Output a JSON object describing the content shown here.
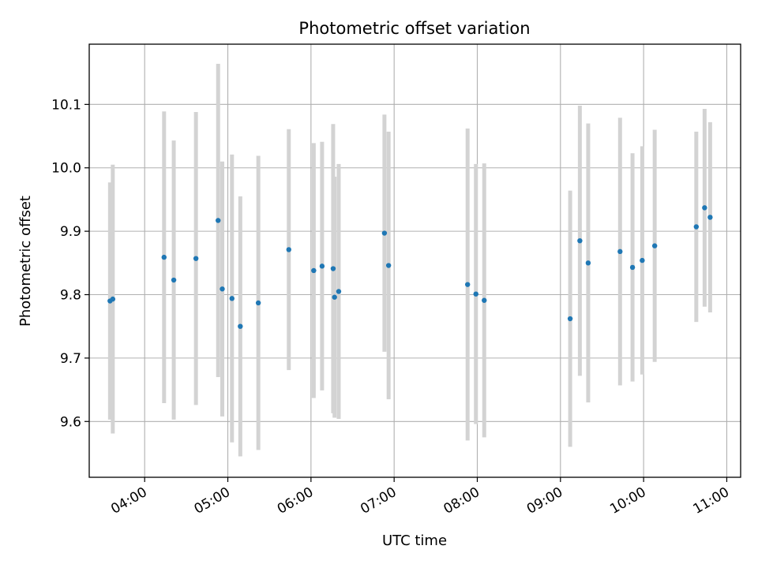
{
  "chart_data": {
    "type": "scatter",
    "title": "Photometric offset variation",
    "xlabel": "UTC time",
    "ylabel": "Photometric offset",
    "x_is_time": true,
    "xlim": [
      "03:20",
      "11:10"
    ],
    "ylim": [
      9.512,
      10.195
    ],
    "xticks": [
      "04:00",
      "05:00",
      "06:00",
      "07:00",
      "08:00",
      "09:00",
      "10:00",
      "11:00"
    ],
    "yticks": [
      "9.6",
      "9.7",
      "9.8",
      "9.9",
      "10.0",
      "10.1"
    ],
    "grid": true,
    "legend": "none",
    "colors": {
      "point": "#1f77b4",
      "errorbar": "#d3d3d3",
      "grid": "#b0b0b0"
    },
    "points": [
      {
        "x": "03:35",
        "y": 9.79,
        "err": 0.187
      },
      {
        "x": "03:37",
        "y": 9.793,
        "err": 0.212
      },
      {
        "x": "04:14",
        "y": 9.859,
        "err": 0.23
      },
      {
        "x": "04:21",
        "y": 9.823,
        "err": 0.22
      },
      {
        "x": "04:37",
        "y": 9.857,
        "err": 0.231
      },
      {
        "x": "04:53",
        "y": 9.917,
        "err": 0.247
      },
      {
        "x": "04:56",
        "y": 9.809,
        "err": 0.201
      },
      {
        "x": "05:03",
        "y": 9.794,
        "err": 0.227
      },
      {
        "x": "05:09",
        "y": 9.75,
        "err": 0.205
      },
      {
        "x": "05:22",
        "y": 9.787,
        "err": 0.232
      },
      {
        "x": "05:44",
        "y": 9.871,
        "err": 0.19
      },
      {
        "x": "06:02",
        "y": 9.838,
        "err": 0.201
      },
      {
        "x": "06:08",
        "y": 9.845,
        "err": 0.196
      },
      {
        "x": "06:16",
        "y": 9.841,
        "err": 0.228
      },
      {
        "x": "06:17",
        "y": 9.796,
        "err": 0.19
      },
      {
        "x": "06:20",
        "y": 9.805,
        "err": 0.201
      },
      {
        "x": "06:53",
        "y": 9.897,
        "err": 0.187
      },
      {
        "x": "06:56",
        "y": 9.846,
        "err": 0.211
      },
      {
        "x": "07:53",
        "y": 9.816,
        "err": 0.246
      },
      {
        "x": "07:59",
        "y": 9.801,
        "err": 0.205
      },
      {
        "x": "08:05",
        "y": 9.791,
        "err": 0.216
      },
      {
        "x": "09:07",
        "y": 9.762,
        "err": 0.202
      },
      {
        "x": "09:14",
        "y": 9.885,
        "err": 0.213
      },
      {
        "x": "09:20",
        "y": 9.85,
        "err": 0.22
      },
      {
        "x": "09:43",
        "y": 9.868,
        "err": 0.211
      },
      {
        "x": "09:52",
        "y": 9.843,
        "err": 0.18
      },
      {
        "x": "09:59",
        "y": 9.854,
        "err": 0.18
      },
      {
        "x": "10:08",
        "y": 9.877,
        "err": 0.183
      },
      {
        "x": "10:38",
        "y": 9.907,
        "err": 0.15
      },
      {
        "x": "10:44",
        "y": 9.937,
        "err": 0.156
      },
      {
        "x": "10:48",
        "y": 9.922,
        "err": 0.15
      }
    ]
  }
}
